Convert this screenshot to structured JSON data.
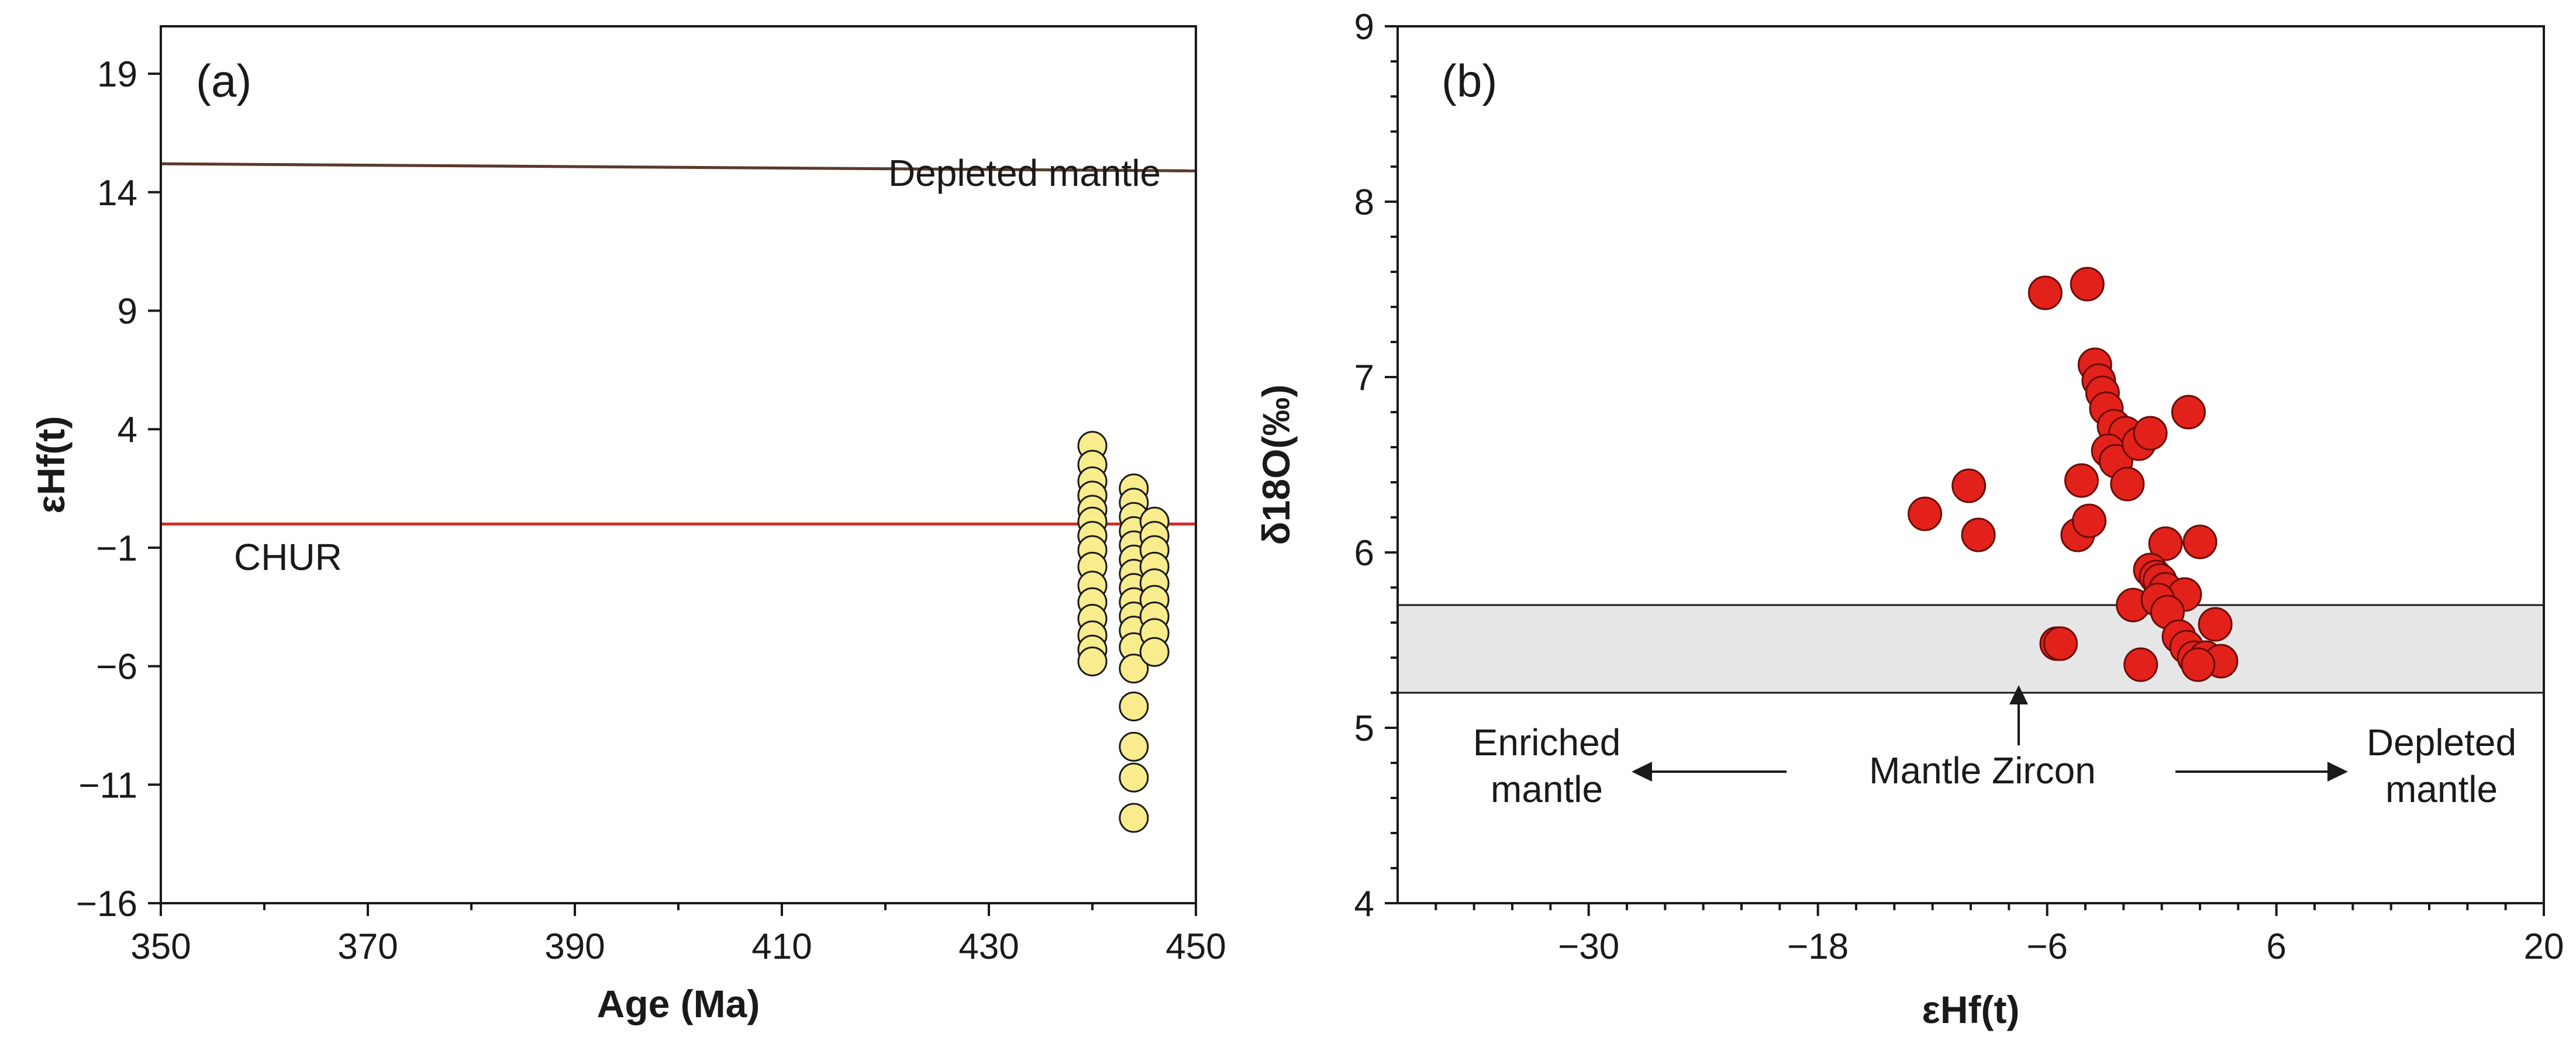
{
  "chart_data": [
    {
      "panel_label": "(a)",
      "type": "scatter",
      "xlabel": "Age (Ma)",
      "ylabel": "εHf(t)",
      "xlim": [
        350,
        450
      ],
      "ylim": [
        -16,
        21
      ],
      "x_ticks": [
        350,
        370,
        390,
        410,
        430,
        450
      ],
      "y_ticks": [
        -16,
        -11,
        -6,
        -1,
        4,
        9,
        14,
        19
      ],
      "x_tick_labels": [
        "350",
        "370",
        "390",
        "410",
        "430",
        "450"
      ],
      "y_tick_labels": [
        "−16",
        "−11",
        "−6",
        "−1",
        "4",
        "9",
        "14",
        "19"
      ],
      "reference_lines": [
        {
          "name": "Depleted mantle",
          "x": [
            350,
            450
          ],
          "y": [
            15.2,
            14.9
          ],
          "color": "#5a3a2a",
          "label": "Depleted mantle"
        },
        {
          "name": "CHUR",
          "x": [
            350,
            450
          ],
          "y": [
            0.0,
            0.0
          ],
          "color": "#d42a20",
          "label": "CHUR"
        }
      ],
      "marker_color": "#f8ec8c",
      "series": [
        {
          "name": "zircon",
          "points": [
            [
              440,
              3.3
            ],
            [
              440,
              2.5
            ],
            [
              440,
              1.8
            ],
            [
              440,
              1.2
            ],
            [
              440,
              0.6
            ],
            [
              440,
              0.1
            ],
            [
              440,
              -0.5
            ],
            [
              440,
              -1.1
            ],
            [
              440,
              -1.8
            ],
            [
              440,
              -2.6
            ],
            [
              440,
              -3.3
            ],
            [
              440,
              -4.0
            ],
            [
              440,
              -4.7
            ],
            [
              440,
              -5.3
            ],
            [
              440,
              -5.8
            ],
            [
              444,
              1.5
            ],
            [
              444,
              0.9
            ],
            [
              444,
              0.3
            ],
            [
              444,
              -0.3
            ],
            [
              444,
              -0.9
            ],
            [
              444,
              -1.5
            ],
            [
              444,
              -2.1
            ],
            [
              444,
              -2.7
            ],
            [
              444,
              -3.3
            ],
            [
              444,
              -3.9
            ],
            [
              444,
              -4.5
            ],
            [
              444,
              -5.2
            ],
            [
              444,
              -6.1
            ],
            [
              444,
              -7.7
            ],
            [
              444,
              -9.4
            ],
            [
              444,
              -10.7
            ],
            [
              444,
              -12.4
            ],
            [
              446,
              0.1
            ],
            [
              446,
              -0.5
            ],
            [
              446,
              -1.1
            ],
            [
              446,
              -1.8
            ],
            [
              446,
              -2.5
            ],
            [
              446,
              -3.2
            ],
            [
              446,
              -3.9
            ],
            [
              446,
              -4.6
            ],
            [
              446,
              -5.4
            ]
          ]
        }
      ]
    },
    {
      "panel_label": "(b)",
      "type": "scatter",
      "xlabel": "εHf(t)",
      "ylabel": "δ18O(‰)",
      "xlim": [
        -40,
        20
      ],
      "ylim": [
        4,
        9
      ],
      "x_ticks": [
        -30,
        -18,
        -6,
        6,
        20
      ],
      "y_ticks": [
        4,
        5,
        6,
        7,
        8,
        9
      ],
      "x_tick_labels": [
        "−30",
        "−18",
        "−6",
        "6",
        "20"
      ],
      "y_tick_labels": [
        "4",
        "5",
        "6",
        "7",
        "8",
        "9"
      ],
      "band": {
        "name": "Mantle Zircon range",
        "y_range": [
          5.2,
          5.7
        ],
        "color": "#e6e6e6"
      },
      "annotations": [
        {
          "text": "Mantle Zircon",
          "x": -6,
          "y": 4.8
        },
        {
          "text": "Enriched",
          "x": -34,
          "y": 4.95
        },
        {
          "text": "mantle",
          "x": -34,
          "y": 4.66
        },
        {
          "text": "Depleted",
          "x": 15,
          "y": 4.95
        },
        {
          "text": "mantle",
          "x": 15,
          "y": 4.66
        }
      ],
      "marker_color": "#e2211b",
      "series": [
        {
          "name": "zircon",
          "points": [
            [
              -6.1,
              7.48
            ],
            [
              -3.9,
              7.53
            ],
            [
              -12.4,
              6.22
            ],
            [
              -10.1,
              6.38
            ],
            [
              -9.6,
              6.1
            ],
            [
              -5.5,
              5.48
            ],
            [
              -5.3,
              5.48
            ],
            [
              -3.5,
              7.07
            ],
            [
              -3.3,
              6.98
            ],
            [
              -3.1,
              6.91
            ],
            [
              -2.9,
              6.82
            ],
            [
              -2.5,
              6.72
            ],
            [
              -1.9,
              6.68
            ],
            [
              -2.8,
              6.58
            ],
            [
              -2.4,
              6.52
            ],
            [
              -1.2,
              6.62
            ],
            [
              -0.6,
              6.68
            ],
            [
              1.4,
              6.8
            ],
            [
              -4.2,
              6.41
            ],
            [
              -1.8,
              6.39
            ],
            [
              -4.4,
              6.1
            ],
            [
              -3.8,
              6.18
            ],
            [
              0.2,
              6.05
            ],
            [
              2.0,
              6.06
            ],
            [
              -0.6,
              5.9
            ],
            [
              -0.3,
              5.86
            ],
            [
              -0.1,
              5.84
            ],
            [
              0.2,
              5.79
            ],
            [
              1.2,
              5.76
            ],
            [
              -1.5,
              5.7
            ],
            [
              -0.2,
              5.73
            ],
            [
              0.3,
              5.66
            ],
            [
              0.9,
              5.52
            ],
            [
              1.3,
              5.46
            ],
            [
              1.7,
              5.4
            ],
            [
              2.3,
              5.4
            ],
            [
              3.1,
              5.38
            ],
            [
              2.8,
              5.59
            ],
            [
              -1.1,
              5.36
            ],
            [
              1.9,
              5.36
            ]
          ]
        }
      ]
    }
  ]
}
